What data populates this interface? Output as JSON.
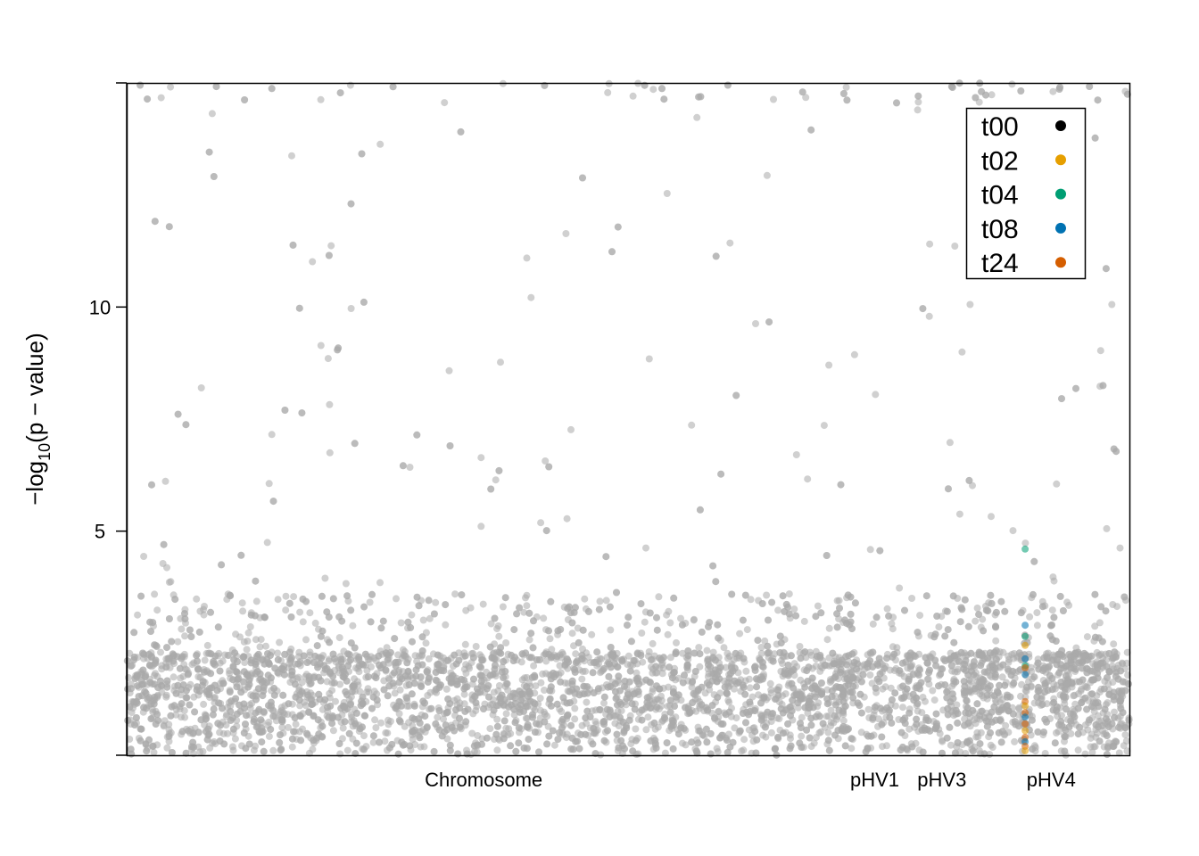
{
  "chart_data": {
    "type": "scatter",
    "title": "",
    "xlabel": "",
    "ylabel": {
      "main": "−log",
      "sub": "10",
      "rest": "(p − value)"
    },
    "ylim": [
      0,
      15
    ],
    "yticks": [
      5,
      10
    ],
    "xcategories": [
      {
        "label": "Chromosome",
        "start": 0,
        "end": 0.71
      },
      {
        "label": "pHV1",
        "start": 0.71,
        "end": 0.77
      },
      {
        "label": "pHV3",
        "start": 0.77,
        "end": 0.84
      },
      {
        "label": "pHV4",
        "start": 0.84,
        "end": 1.0
      }
    ],
    "grid": false,
    "legend": {
      "position": "top-right",
      "entries": [
        {
          "label": "t00",
          "color": "#000000"
        },
        {
          "label": "t02",
          "color": "#E69F00"
        },
        {
          "label": "t04",
          "color": "#009E73"
        },
        {
          "label": "t08",
          "color": "#0072B2"
        },
        {
          "label": "t24",
          "color": "#D55E00"
        }
      ]
    },
    "background_series": {
      "name": "",
      "color": "#A9A9A9",
      "description_values": "dense cloud of -log10 p-values, mostly 0-3, scattered up to 15"
    },
    "highlighted_points": [
      {
        "series": "t04",
        "x": 0.896,
        "y": 4.6
      },
      {
        "series": "t08",
        "x": 0.896,
        "y": 2.9
      },
      {
        "series": "t04",
        "x": 0.896,
        "y": 2.65
      },
      {
        "series": "t02",
        "x": 0.896,
        "y": 2.45
      },
      {
        "series": "t08",
        "x": 0.896,
        "y": 2.15
      },
      {
        "series": "t04",
        "x": 0.896,
        "y": 2.0
      },
      {
        "series": "t24",
        "x": 0.896,
        "y": 1.95
      },
      {
        "series": "t08",
        "x": 0.896,
        "y": 1.8
      },
      {
        "series": "t24",
        "x": 0.896,
        "y": 1.2
      },
      {
        "series": "t02",
        "x": 0.896,
        "y": 1.1
      },
      {
        "series": "t24",
        "x": 0.896,
        "y": 0.95
      },
      {
        "series": "t08",
        "x": 0.896,
        "y": 0.85
      },
      {
        "series": "t24",
        "x": 0.896,
        "y": 0.7
      },
      {
        "series": "t02",
        "x": 0.896,
        "y": 0.55
      },
      {
        "series": "t24",
        "x": 0.896,
        "y": 0.4
      },
      {
        "series": "t08",
        "x": 0.896,
        "y": 0.3
      },
      {
        "series": "t24",
        "x": 0.896,
        "y": 0.2
      },
      {
        "series": "t02",
        "x": 0.896,
        "y": 0.1
      }
    ]
  }
}
